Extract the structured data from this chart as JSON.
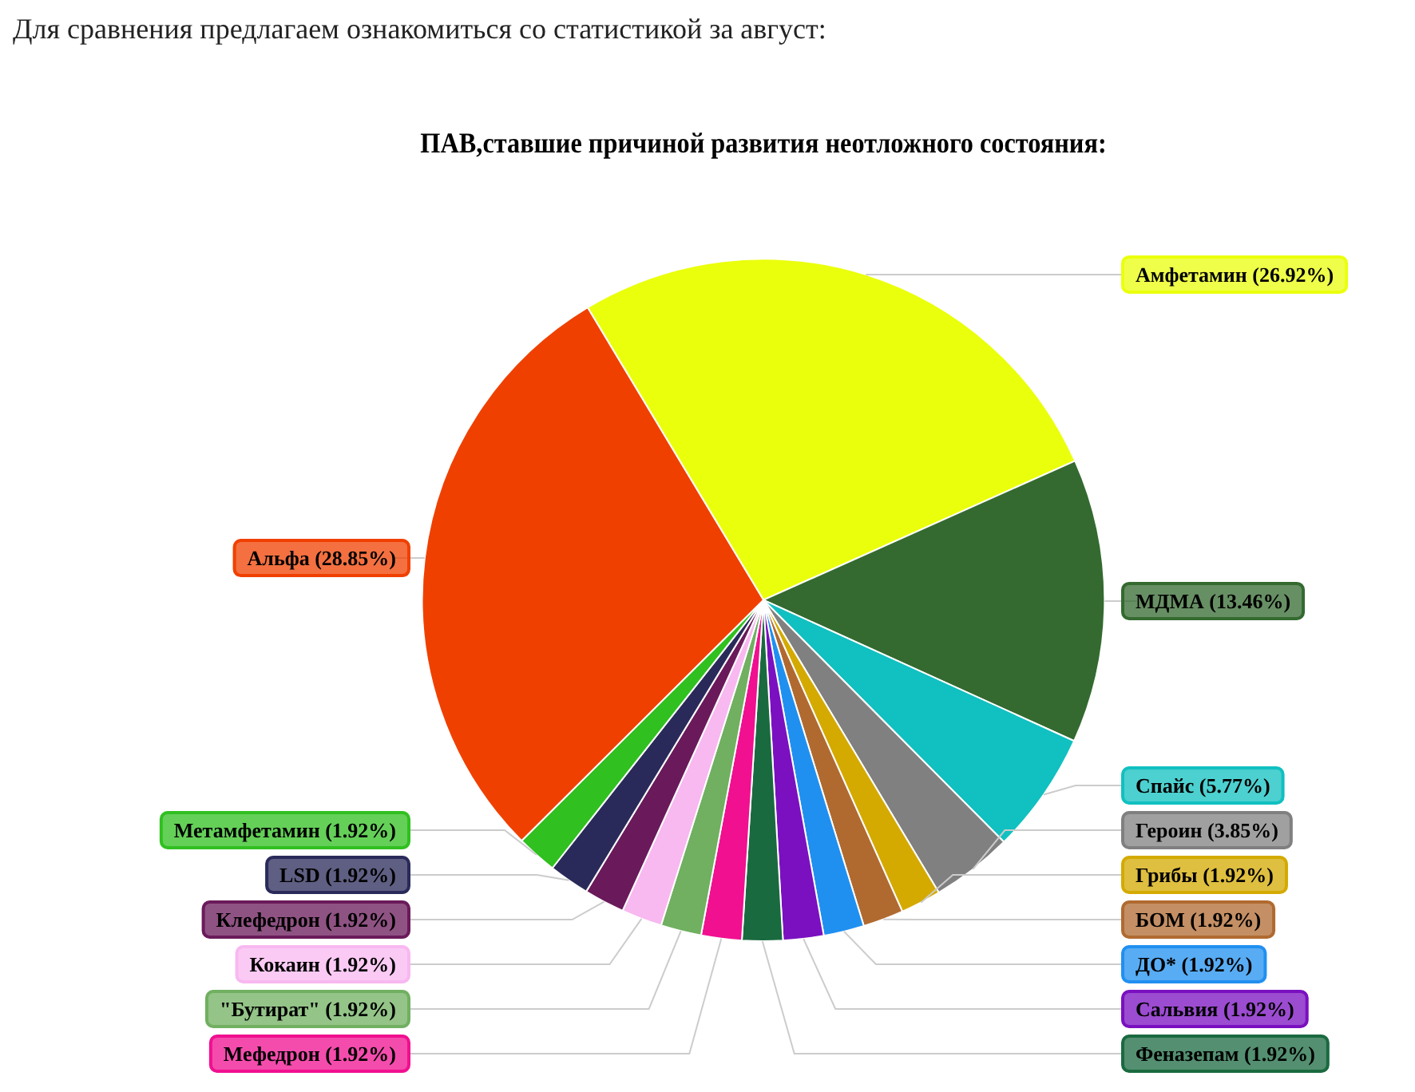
{
  "chart_data": {
    "type": "pie",
    "title": "ПАВ,ставшие причиной развития неотложного состояния:",
    "annotations": [
      "Для сравнения предлагаем ознакомиться со статистикой за август:"
    ],
    "categories": [
      "Амфетамин",
      "МДМА",
      "Спайс",
      "Героин",
      "Грибы",
      "БОМ",
      "ДО*",
      "Сальвия",
      "Феназепам",
      "Мефедрон",
      "\"Бутират\"",
      "Кокаин",
      "Клефедрон",
      "LSD",
      "Метамфетамин",
      "Альфа"
    ],
    "values": [
      26.92,
      13.46,
      5.77,
      3.85,
      1.92,
      1.92,
      1.92,
      1.92,
      1.92,
      1.92,
      1.92,
      1.92,
      1.92,
      1.92,
      1.92,
      28.85
    ],
    "colors": [
      "#eaff0c",
      "#346a30",
      "#11c0c0",
      "#808080",
      "#d4aa00",
      "#b06a30",
      "#2090f0",
      "#7a10c0",
      "#1a6a40",
      "#f01090",
      "#70b060",
      "#f8b8f0",
      "#6a1a5a",
      "#2a2a5a",
      "#30c020",
      "#f04000"
    ],
    "value_labels": [
      "(26.92%)",
      "(13.46%)",
      "(5.77%)",
      "(3.85%)",
      "(1.92%)",
      "(1.92%)",
      "(1.92%)",
      "(1.92%)",
      "(1.92%)",
      "(1.92%)",
      "(1.92%)",
      "(1.92%)",
      "(1.92%)",
      "(1.92%)",
      "(1.92%)",
      "(28.85%)"
    ],
    "legend": false
  }
}
